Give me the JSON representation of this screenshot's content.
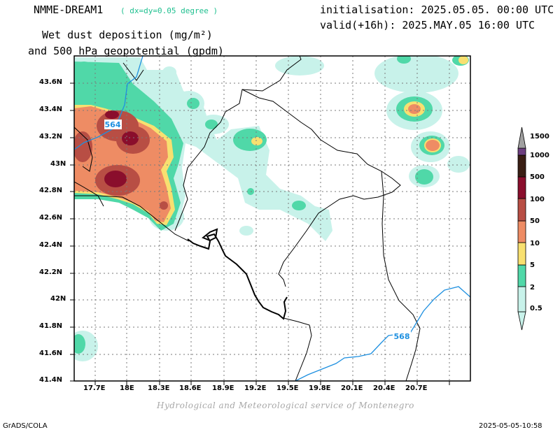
{
  "header": {
    "model": "NMME-DREAM1",
    "resolution": "( dx=dy=0.05 degree )",
    "title_line1": "Wet dust deposition (mg/m²)",
    "title_line2": "and 500 hPa geopotential (gpdm)",
    "init": "initialisation: 2025.05.05. 00:00 UTC",
    "valid": "valid(+16h): 2025.MAY.05 16:00 UTC"
  },
  "axes": {
    "lat_labels": [
      "43.6N",
      "43.4N",
      "43.2N",
      "43N",
      "42.8N",
      "42.6N",
      "42.4N",
      "42.2N",
      "42N",
      "41.8N",
      "41.6N",
      "41.4N"
    ],
    "lon_labels": [
      "17.7E",
      "18E",
      "18.3E",
      "18.6E",
      "18.9E",
      "19.2E",
      "19.5E",
      "19.8E",
      "20.1E",
      "20.4E",
      "20.7E"
    ]
  },
  "contours": {
    "labels": [
      "564",
      "568"
    ],
    "color": "#1e90e0"
  },
  "colorbar": {
    "levels": [
      "0.5",
      "2",
      "5",
      "10",
      "50",
      "100",
      "500",
      "1000",
      "1500"
    ],
    "colors": [
      "#c8f2ea",
      "#50d8a8",
      "#f8e070",
      "#ee8c64",
      "#b84e44",
      "#8a0e2c",
      "#3a1e14",
      "#6e3f80",
      "#9a5fa8",
      "#a0a0a0"
    ]
  },
  "footer": {
    "credit": "Hydrological and Meteorological service of Montenegro",
    "left": "GrADS/COLA",
    "right": "2025-05-05-10:58"
  }
}
